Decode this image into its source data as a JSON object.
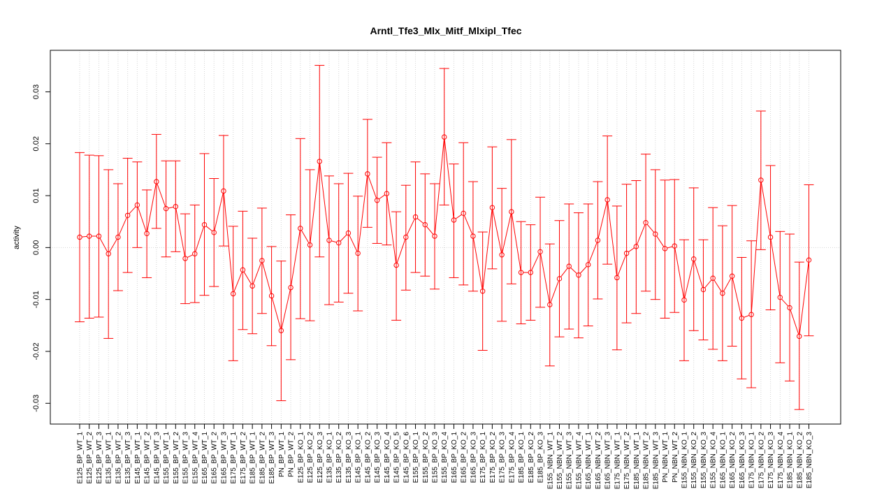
{
  "chart_data": {
    "type": "line",
    "title": "Arntl_Tfe3_Mlx_Mitf_Mlxipl_Tfec",
    "xlabel": "",
    "ylabel": "activity",
    "ylim": [
      -0.034,
      0.038
    ],
    "yticks": [
      -0.03,
      -0.02,
      -0.01,
      0.0,
      0.01,
      0.02,
      0.03
    ],
    "ytick_labels": [
      "-0.03",
      "-0.02",
      "-0.01",
      "0.00",
      "0.01",
      "0.02",
      "0.03"
    ],
    "grid": true,
    "color": "#ff0000",
    "categories": [
      "E125_BP_WT_1",
      "E125_BP_WT_2",
      "E125_BP_WT_3",
      "E135_BP_WT_1",
      "E135_BP_WT_2",
      "E135_BP_WT_3",
      "E145_BP_WT_1",
      "E145_BP_WT_2",
      "E145_BP_WT_3",
      "E155_BP_WT_1",
      "E155_BP_WT_2",
      "E155_BP_WT_3",
      "E155_BP_WT_4",
      "E165_BP_WT_1",
      "E165_BP_WT_2",
      "E165_BP_WT_3",
      "E175_BP_WT_1",
      "E175_BP_WT_2",
      "E185_BP_WT_1",
      "E185_BP_WT_2",
      "E185_BP_WT_3",
      "PN_BP_WT_1",
      "PN_BP_WT_2",
      "E125_BP_KO_1",
      "E125_BP_KO_2",
      "E125_BP_KO_3",
      "E135_BP_KO_1",
      "E135_BP_KO_2",
      "E135_BP_KO_3",
      "E145_BP_KO_1",
      "E145_BP_KO_2",
      "E145_BP_KO_3",
      "E145_BP_KO_4",
      "E145_BP_KO_5",
      "E145_BP_KO_6",
      "E155_BP_KO_1",
      "E155_BP_KO_2",
      "E155_BP_KO_3",
      "E155_BP_KO_4",
      "E165_BP_KO_1",
      "E165_BP_KO_2",
      "E165_BP_KO_3",
      "E175_BP_KO_1",
      "E175_BP_KO_2",
      "E175_BP_KO_3",
      "E175_BP_KO_4",
      "E185_BP_KO_1",
      "E185_BP_KO_2",
      "E185_BP_KO_3",
      "E155_NBN_WT_1",
      "E155_NBN_WT_2",
      "E155_NBN_WT_3",
      "E155_NBN_WT_4",
      "E165_NBN_WT_1",
      "E165_NBN_WT_2",
      "E165_NBN_WT_3",
      "E175_NBN_WT_1",
      "E175_NBN_WT_2",
      "E185_NBN_WT_1",
      "E185_NBN_WT_2",
      "E185_NBN_WT_3",
      "PN_NBN_WT_1",
      "PN_NBN_WT_2",
      "E155_NBN_KO_1",
      "E155_NBN_KO_2",
      "E155_NBN_KO_3",
      "E155_NBN_KO_4",
      "E165_NBN_KO_1",
      "E165_NBN_KO_2",
      "E165_NBN_KO_3",
      "E175_NBN_KO_1",
      "E175_NBN_KO_2",
      "E175_NBN_KO_3",
      "E175_NBN_KO_4",
      "E185_NBN_KO_1",
      "E185_NBN_KO_2",
      "E185_NBN_KO_3"
    ],
    "values": [
      0.002,
      0.0022,
      0.0022,
      -0.0012,
      0.002,
      0.0062,
      0.0082,
      0.0027,
      0.0127,
      0.0075,
      0.0079,
      -0.0021,
      -0.0012,
      0.0044,
      0.0029,
      0.0109,
      -0.0089,
      -0.0043,
      -0.0074,
      -0.0025,
      -0.0093,
      -0.016,
      -0.0077,
      0.0037,
      0.0005,
      0.0166,
      0.0014,
      0.0009,
      0.0028,
      -0.0011,
      0.0142,
      0.0091,
      0.0104,
      -0.0034,
      0.002,
      0.0059,
      0.0044,
      0.0022,
      0.0213,
      0.0053,
      0.0066,
      0.0022,
      -0.0084,
      0.0077,
      -0.0014,
      0.0069,
      -0.0048,
      -0.0048,
      -0.0008,
      -0.011,
      -0.006,
      -0.0036,
      -0.0053,
      -0.0033,
      0.0014,
      0.0092,
      -0.0058,
      -0.0011,
      0.0002,
      0.0048,
      0.0026,
      -0.0002,
      0.0003,
      -0.0101,
      -0.0022,
      -0.0081,
      -0.0059,
      -0.0088,
      -0.0055,
      -0.0136,
      -0.0129,
      0.013,
      0.002,
      -0.0096,
      -0.0116,
      -0.0171,
      -0.0024
    ],
    "upper": [
      0.0183,
      0.0178,
      0.0177,
      0.015,
      0.0123,
      0.0172,
      0.0165,
      0.0111,
      0.0218,
      0.0167,
      0.0167,
      0.0065,
      0.0082,
      0.0181,
      0.0133,
      0.0216,
      0.0041,
      0.007,
      0.0018,
      0.0076,
      0.0002,
      -0.0026,
      0.0063,
      0.021,
      0.015,
      0.0351,
      0.0138,
      0.0123,
      0.0143,
      0.0099,
      0.0247,
      0.0174,
      0.0202,
      0.0069,
      0.012,
      0.0165,
      0.0142,
      0.0123,
      0.0345,
      0.0161,
      0.0202,
      0.0127,
      0.003,
      0.0194,
      0.0114,
      0.0208,
      0.005,
      0.0044,
      0.0097,
      0.0007,
      0.0052,
      0.0084,
      0.0067,
      0.0084,
      0.0127,
      0.0215,
      0.008,
      0.0122,
      0.0129,
      0.018,
      0.015,
      0.013,
      0.0131,
      0.0015,
      0.0115,
      0.0015,
      0.0077,
      0.0042,
      0.0081,
      -0.0019,
      0.0013,
      0.0263,
      0.0158,
      0.0031,
      0.0026,
      -0.0028,
      0.0121
    ],
    "lower": [
      -0.0143,
      -0.0136,
      -0.0134,
      -0.0175,
      -0.0083,
      -0.0048,
      0.0,
      -0.0058,
      0.0037,
      -0.0018,
      -0.0008,
      -0.0108,
      -0.0106,
      -0.0092,
      -0.0075,
      0.0003,
      -0.0218,
      -0.0158,
      -0.0166,
      -0.0127,
      -0.0189,
      -0.0295,
      -0.0216,
      -0.0137,
      -0.0141,
      -0.0018,
      -0.011,
      -0.0105,
      -0.0088,
      -0.0122,
      0.0039,
      0.0008,
      0.0005,
      -0.014,
      -0.0082,
      -0.0048,
      -0.0055,
      -0.008,
      0.0082,
      -0.0058,
      -0.0072,
      -0.0084,
      -0.0198,
      -0.0041,
      -0.0142,
      -0.007,
      -0.0147,
      -0.014,
      -0.0115,
      -0.0228,
      -0.0172,
      -0.0157,
      -0.0174,
      -0.0151,
      -0.0099,
      -0.0032,
      -0.0197,
      -0.0145,
      -0.0127,
      -0.0084,
      -0.01,
      -0.0136,
      -0.0125,
      -0.0218,
      -0.016,
      -0.0178,
      -0.0196,
      -0.0218,
      -0.019,
      -0.0253,
      -0.027,
      -0.0004,
      -0.012,
      -0.0222,
      -0.0257,
      -0.0312,
      -0.017
    ]
  }
}
